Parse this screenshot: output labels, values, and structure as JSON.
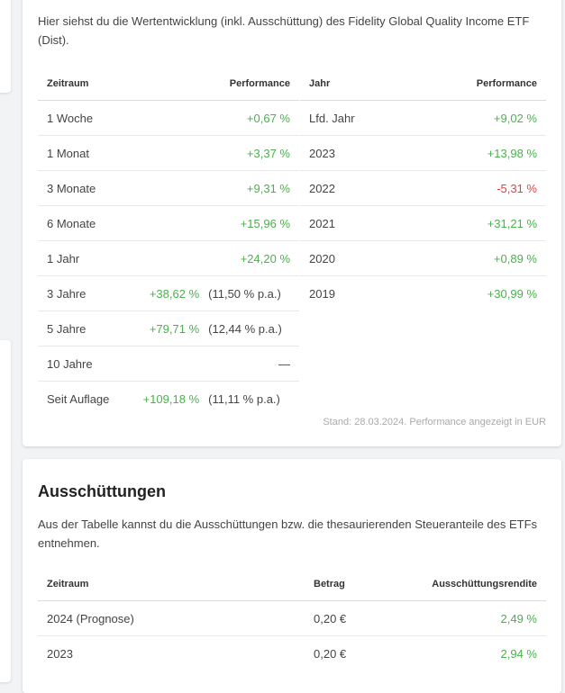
{
  "performance": {
    "intro": "Hier siehst du die Wertentwicklung (inkl. Ausschüttung) des Fidelity Global Quality Income ETF (Dist).",
    "left_headers": {
      "period": "Zeitraum",
      "performance": "Performance"
    },
    "left_rows": [
      {
        "period": "1 Woche",
        "value": "+0,67 %",
        "pa": "",
        "sign": "pos"
      },
      {
        "period": "1 Monat",
        "value": "+3,37 %",
        "pa": "",
        "sign": "pos"
      },
      {
        "period": "3 Monate",
        "value": "+9,31 %",
        "pa": "",
        "sign": "pos"
      },
      {
        "period": "6 Monate",
        "value": "+15,96 %",
        "pa": "",
        "sign": "pos"
      },
      {
        "period": "1 Jahr",
        "value": "+24,20 %",
        "pa": "",
        "sign": "pos"
      },
      {
        "period": "3 Jahre",
        "value": "+38,62 %",
        "pa": "(11,50 % p.a.)",
        "sign": "pos"
      },
      {
        "period": "5 Jahre",
        "value": "+79,71 %",
        "pa": "(12,44 % p.a.)",
        "sign": "pos"
      },
      {
        "period": "10 Jahre",
        "value": "—",
        "pa": "",
        "sign": "none"
      },
      {
        "period": "Seit Auflage",
        "value": "+109,18 %",
        "pa": "(11,11 % p.a.)",
        "sign": "pos"
      }
    ],
    "right_headers": {
      "year": "Jahr",
      "performance": "Performance"
    },
    "right_rows": [
      {
        "year": "Lfd. Jahr",
        "value": "+9,02 %",
        "sign": "pos"
      },
      {
        "year": "2023",
        "value": "+13,98 %",
        "sign": "pos"
      },
      {
        "year": "2022",
        "value": "-5,31 %",
        "sign": "neg"
      },
      {
        "year": "2021",
        "value": "+31,21 %",
        "sign": "pos"
      },
      {
        "year": "2020",
        "value": "+0,89 %",
        "sign": "pos"
      },
      {
        "year": "2019",
        "value": "+30,99 %",
        "sign": "pos"
      }
    ],
    "stand": "Stand: 28.03.2024. Performance angezeigt in EUR"
  },
  "distributions": {
    "title": "Ausschüttungen",
    "intro": "Aus der Tabelle kannst du die Ausschüttungen bzw. die thesaurierenden Steueranteile des ETFs entnehmen.",
    "headers": {
      "period": "Zeitraum",
      "amount": "Betrag",
      "yield": "Ausschüttungsrendite"
    },
    "rows": [
      {
        "period": "2024 (Prognose)",
        "amount": "0,20 €",
        "yield": "2,49 %"
      },
      {
        "period": "2023",
        "amount": "0,20 €",
        "yield": "2,94 %"
      }
    ]
  },
  "colors": {
    "positive": "#4caf50",
    "negative": "#d64545"
  }
}
